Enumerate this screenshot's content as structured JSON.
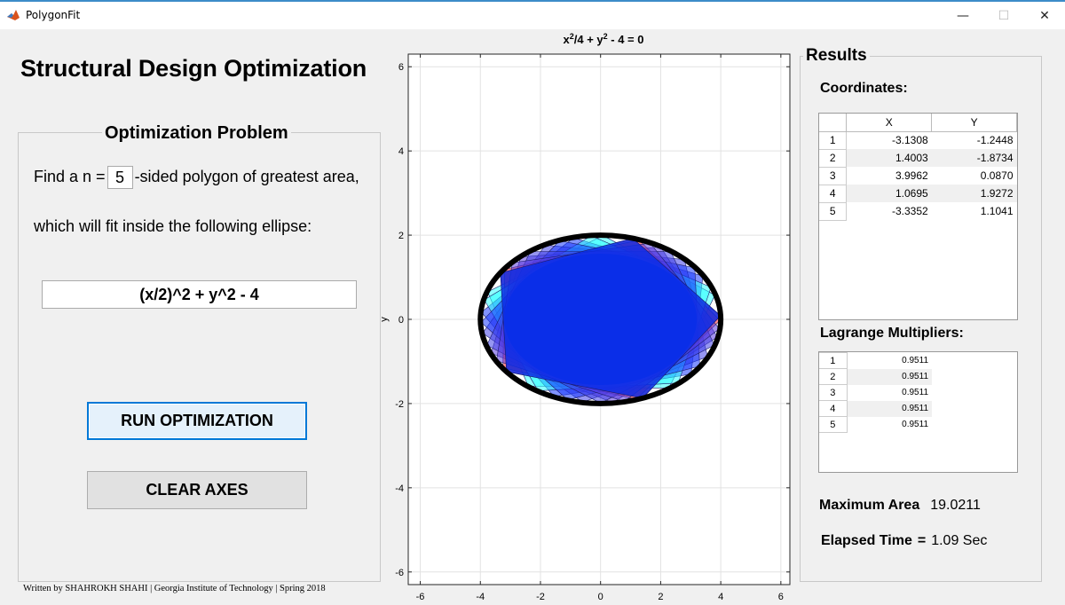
{
  "window": {
    "title": "PolygonFit",
    "minimize": "—",
    "maximize": "☐",
    "close": "✕"
  },
  "app_title": "Structural Design Optimization",
  "problem": {
    "panel_title": "Optimization Problem",
    "line1_prefix": "Find a n =",
    "n_value": "5",
    "line1_suffix": "-sided polygon of greatest area,",
    "line2": "which will fit inside the following ellipse:",
    "expression": "(x/2)^2 + y^2 - 4"
  },
  "buttons": {
    "run": "RUN OPTIMIZATION",
    "clear": "CLEAR AXES"
  },
  "credit": "Written by SHAHROKH SHAHI | Georgia Institute of Technology | Spring 2018",
  "plot": {
    "title_parts": [
      "x",
      "2",
      "/4 + y",
      "2",
      " - 4 = 0"
    ],
    "ylabel": "y",
    "xlim": [
      -6.4,
      6.3
    ],
    "ylim": [
      -6.3,
      6.3
    ],
    "xticks": [
      -6,
      -4,
      -2,
      0,
      2,
      4,
      6
    ],
    "yticks": [
      -6,
      -4,
      -2,
      0,
      2,
      4,
      6
    ],
    "grid": true,
    "ellipse": {
      "a": 4,
      "b": 2,
      "color": "#000000"
    },
    "polygon_colors": [
      "#ff3030",
      "#30ffff",
      "#1a3aff",
      "#4040e8",
      "#5a3ae0"
    ],
    "fill_color": "#0a2ee8"
  },
  "results": {
    "panel_title": "Results",
    "coords_label": "Coordinates:",
    "columns": [
      "X",
      "Y"
    ],
    "coordinates": [
      {
        "row": "1",
        "x": "-3.1308",
        "y": "-1.2448"
      },
      {
        "row": "2",
        "x": "1.4003",
        "y": "-1.8734"
      },
      {
        "row": "3",
        "x": "3.9962",
        "y": "0.0870"
      },
      {
        "row": "4",
        "x": "1.0695",
        "y": "1.9272"
      },
      {
        "row": "5",
        "x": "-3.3352",
        "y": "1.1041"
      }
    ],
    "lagrange_label": "Lagrange Multipliers:",
    "lagrange": [
      {
        "row": "1",
        "value": "0.9511"
      },
      {
        "row": "2",
        "value": "0.9511"
      },
      {
        "row": "3",
        "value": "0.9511"
      },
      {
        "row": "4",
        "value": "0.9511"
      },
      {
        "row": "5",
        "value": "0.9511"
      }
    ],
    "max_area_label": "Maximum Area",
    "max_area_value": "19.0211",
    "elapsed_label": "Elapsed Time",
    "elapsed_eq": "=",
    "elapsed_value": "1.09 Sec"
  }
}
